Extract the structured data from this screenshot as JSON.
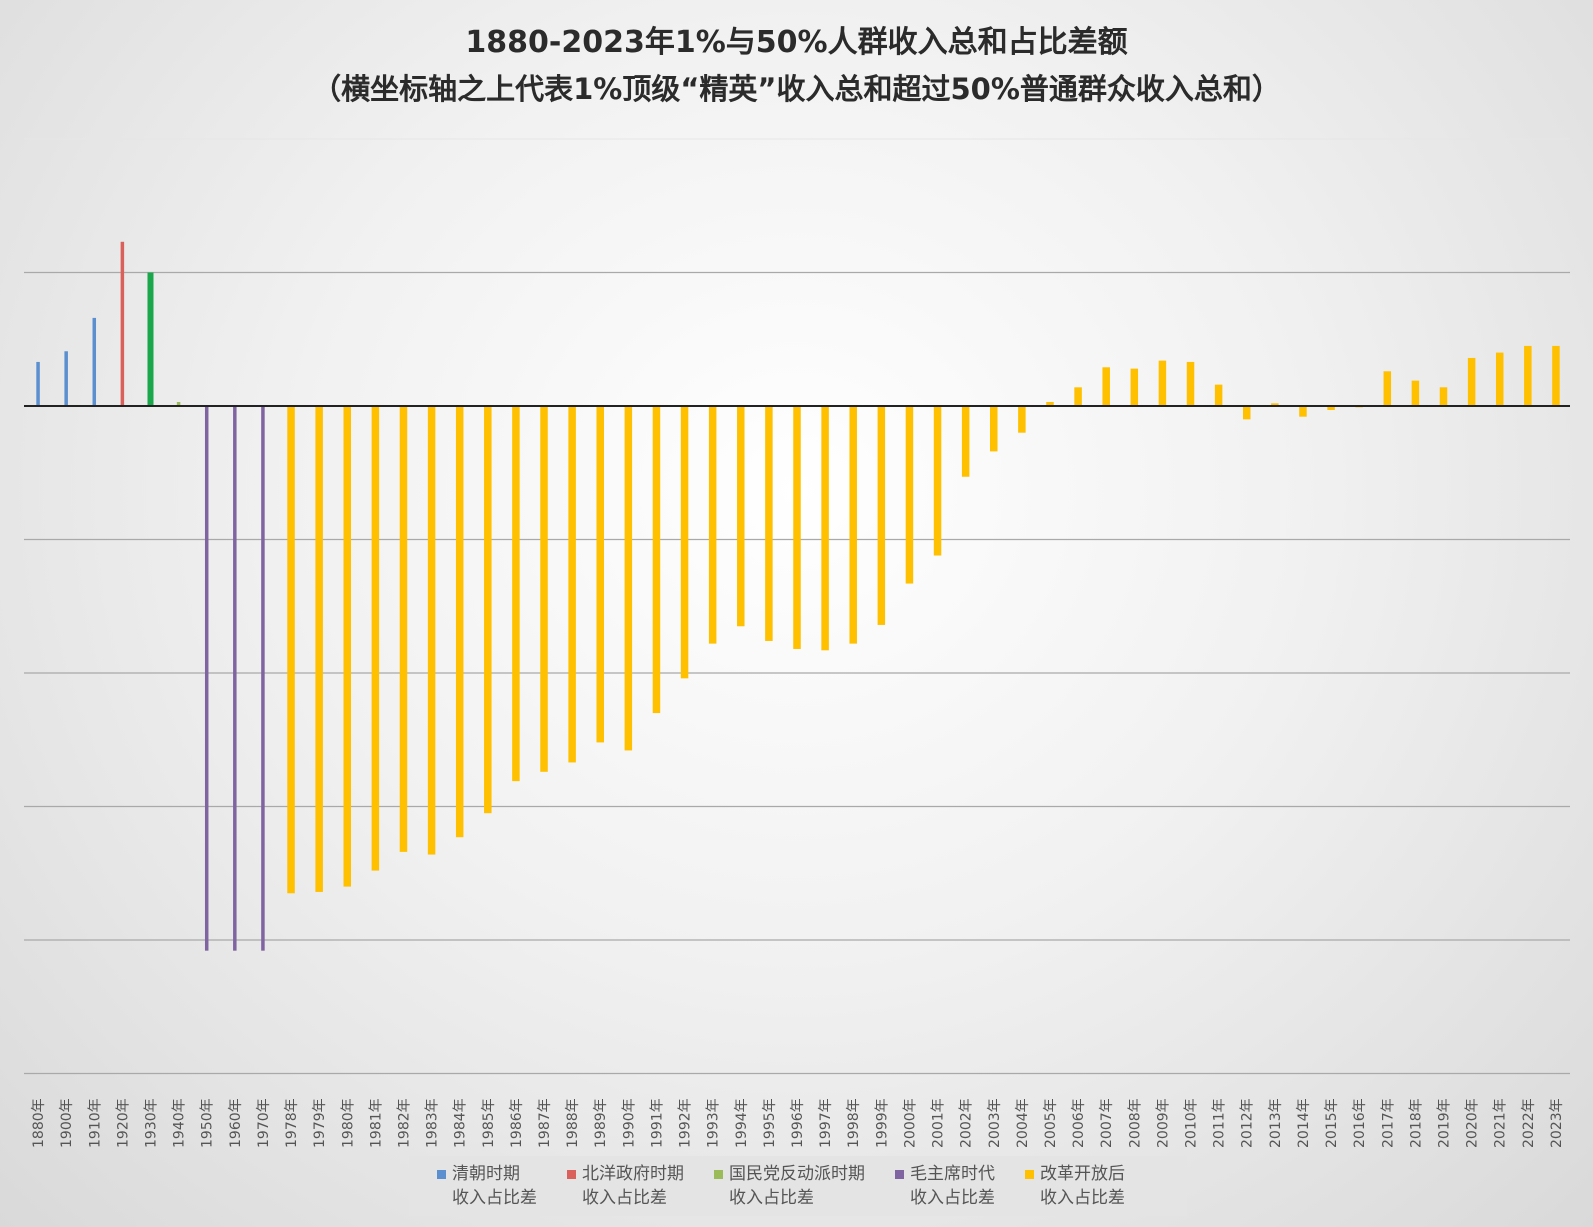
{
  "title": "1880-2023年1%与50%人群收入总和占比差额",
  "subtitle": "（横坐标轴之上代表1%顶级“精英”收入总和超过50%普通群众收入总和）",
  "legend": [
    {
      "line1": "清朝时期",
      "line2": "收入占比差",
      "color": "#5b8fd0"
    },
    {
      "line1": "北洋政府时期",
      "line2": "收入占比差",
      "color": "#d9605b"
    },
    {
      "line1": "国民党反动派时期",
      "line2": "收入占比差",
      "color": "#9bbb59"
    },
    {
      "line1": "毛主席时代",
      "line2": "收入占比差",
      "color": "#8064a2"
    },
    {
      "line1": "改革开放后",
      "line2": "收入占比差",
      "color": "#ffc000"
    }
  ],
  "chart_data": {
    "type": "bar",
    "title": "1880-2023年1%与50%人群收入总和占比差额",
    "subtitle": "（横坐标轴之上代表1%顶级“精英”收入总和超过50%普通群众收入总和）",
    "xlabel": "",
    "ylabel": "",
    "y_tick_labels_visible": false,
    "grid": true,
    "gridline_count": 7,
    "ylim": [
      -5,
      2
    ],
    "legend_position": "bottom",
    "categories": [
      "1880年",
      "1900年",
      "1910年",
      "1920年",
      "1930年",
      "1940年",
      "1950年",
      "1960年",
      "1970年",
      "1978年",
      "1979年",
      "1980年",
      "1981年",
      "1982年",
      "1983年",
      "1984年",
      "1985年",
      "1986年",
      "1987年",
      "1988年",
      "1989年",
      "1990年",
      "1991年",
      "1992年",
      "1993年",
      "1994年",
      "1995年",
      "1996年",
      "1997年",
      "1998年",
      "1999年",
      "2000年",
      "2001年",
      "2002年",
      "2003年",
      "2004年",
      "2005年",
      "2006年",
      "2007年",
      "2008年",
      "2009年",
      "2010年",
      "2011年",
      "2012年",
      "2013年",
      "2014年",
      "2015年",
      "2016年",
      "2017年",
      "2018年",
      "2019年",
      "2020年",
      "2021年",
      "2022年",
      "2023年"
    ],
    "values": [
      0.33,
      0.41,
      0.66,
      1.23,
      1.0,
      0.03,
      -4.08,
      -4.08,
      -4.08,
      -3.65,
      -3.64,
      -3.6,
      -3.48,
      -3.34,
      -3.36,
      -3.23,
      -3.05,
      -2.81,
      -2.74,
      -2.67,
      -2.52,
      -2.58,
      -2.3,
      -2.04,
      -1.78,
      -1.65,
      -1.76,
      -1.82,
      -1.83,
      -1.78,
      -1.64,
      -1.33,
      -1.12,
      -0.53,
      -0.34,
      -0.2,
      0.03,
      0.14,
      0.29,
      0.28,
      0.34,
      0.33,
      0.16,
      -0.1,
      0.02,
      -0.08,
      -0.03,
      -0.01,
      0.26,
      0.19,
      0.14,
      0.36,
      0.4,
      0.45,
      0.45
    ],
    "series_index": [
      0,
      0,
      0,
      1,
      1,
      2,
      3,
      3,
      3,
      4,
      4,
      4,
      4,
      4,
      4,
      4,
      4,
      4,
      4,
      4,
      4,
      4,
      4,
      4,
      4,
      4,
      4,
      4,
      4,
      4,
      4,
      4,
      4,
      4,
      4,
      4,
      4,
      4,
      4,
      4,
      4,
      4,
      4,
      4,
      4,
      4,
      4,
      4,
      4,
      4,
      4,
      4,
      4,
      4,
      4
    ],
    "series": [
      {
        "name": "清朝时期 收入占比差",
        "color": "#5b8fd0"
      },
      {
        "name": "北洋政府时期 收入占比差",
        "color": "#d9605b"
      },
      {
        "name": "国民党反动派时期 收入占比差",
        "color": "#9bbb59"
      },
      {
        "name": "毛主席时代 收入占比差",
        "color": "#8064a2"
      },
      {
        "name": "改革开放后 收入占比差",
        "color": "#ffc000"
      }
    ],
    "bar_color_overrides": [
      {
        "category": "1930年",
        "color": "#1aa64b"
      }
    ]
  }
}
